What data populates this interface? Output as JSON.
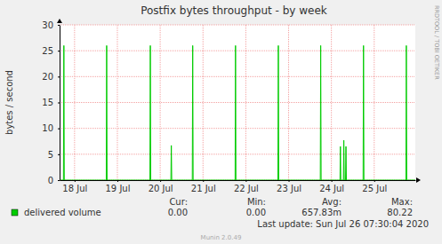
{
  "chart_data": {
    "type": "line",
    "title": "Postfix bytes throughput - by week",
    "y_label": "bytes / second",
    "watermark": "RRDTOOL / TOBI OETIKER",
    "last_update": "Last update: Sun Jul 26 07:30:04 2020",
    "footer": "Munin 2.0.49",
    "x": [
      17.65,
      17.74,
      17.75,
      17.76,
      18.74,
      18.75,
      18.76,
      19.76,
      19.77,
      19.78,
      20.25,
      20.26,
      20.27,
      20.75,
      20.76,
      20.77,
      21.75,
      21.76,
      21.77,
      22.75,
      22.76,
      22.77,
      23.74,
      23.75,
      23.76,
      24.2,
      24.21,
      24.22,
      24.28,
      24.29,
      24.3,
      24.33,
      24.34,
      24.35,
      24.74,
      24.75,
      24.76,
      25.74,
      25.75,
      25.76,
      25.96
    ],
    "series": [
      {
        "name": "delivered volume",
        "color": "#00cc00",
        "values": [
          0,
          0,
          26,
          0,
          0,
          26,
          0,
          0,
          26,
          0,
          0,
          6.7,
          0,
          0,
          26,
          0,
          0,
          26,
          0,
          0,
          26,
          0,
          0,
          26,
          0,
          0,
          6.5,
          0,
          0,
          7.7,
          0,
          0,
          6.5,
          0,
          0,
          26,
          0,
          0,
          26,
          0,
          0
        ]
      }
    ],
    "stats": [
      {
        "name": "Cur:",
        "value": 0,
        "label": "0.00"
      },
      {
        "name": "Min:",
        "value": 0,
        "label": "0.00"
      },
      {
        "name": "Avg:",
        "value": 0.65783,
        "label": "657.83m"
      },
      {
        "name": "Max:",
        "value": 80.22,
        "label": "80.22"
      }
    ],
    "xlim": [
      17.65,
      25.96
    ],
    "xticks": [
      {
        "value": 18,
        "label": "18 Jul"
      },
      {
        "value": 19,
        "label": "19 Jul"
      },
      {
        "value": 20,
        "label": "20 Jul"
      },
      {
        "value": 21,
        "label": "21 Jul"
      },
      {
        "value": 22,
        "label": "22 Jul"
      },
      {
        "value": 23,
        "label": "23 Jul"
      },
      {
        "value": 24,
        "label": "24 Jul"
      },
      {
        "value": 25,
        "label": "25 Jul"
      }
    ],
    "ylim": [
      0,
      30
    ],
    "yticks": [
      0,
      5,
      10,
      15,
      20,
      25,
      30
    ],
    "grid": true
  }
}
